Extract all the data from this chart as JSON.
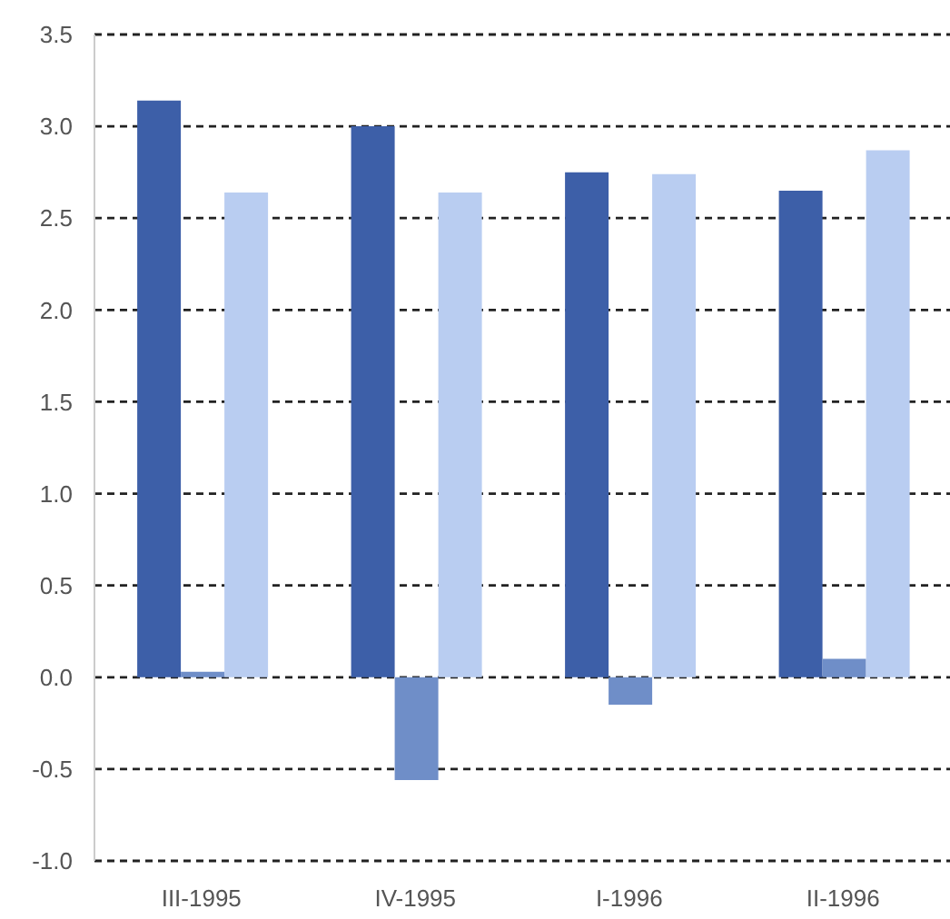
{
  "chart_data": {
    "type": "bar",
    "categories": [
      "III-1995",
      "IV-1995",
      "I-1996",
      "II-1996"
    ],
    "series": [
      {
        "color": "#3d5fa8",
        "values": [
          3.14,
          3.0,
          2.75,
          2.65
        ]
      },
      {
        "color": "#6f8ec8",
        "values": [
          0.03,
          -0.56,
          -0.15,
          0.1
        ]
      },
      {
        "color": "#b9cdf1",
        "values": [
          2.64,
          2.64,
          2.74,
          2.87
        ]
      }
    ],
    "ylim": [
      -1,
      3.5
    ],
    "yticks": [
      {
        "value": -1,
        "label": "-1.0"
      },
      {
        "value": -0.5,
        "label": "-0.5"
      },
      {
        "value": 0,
        "label": "0.0"
      },
      {
        "value": 0.5,
        "label": "0.5"
      },
      {
        "value": 1,
        "label": "1.0"
      },
      {
        "value": 1.5,
        "label": "1.5"
      },
      {
        "value": 2,
        "label": "2.0"
      },
      {
        "value": 2.5,
        "label": "2.5"
      },
      {
        "value": 3,
        "label": "3.0"
      },
      {
        "value": 3.5,
        "label": "3.5"
      }
    ],
    "grid": "y"
  }
}
